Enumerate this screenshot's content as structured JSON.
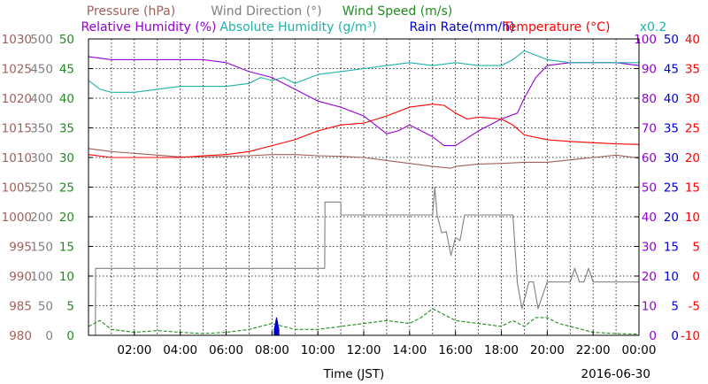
{
  "chart_data": {
    "type": "line",
    "xlabel": "Time (JST)",
    "date": "2016-06-30",
    "grid": true,
    "x_ticks": [
      "02:00",
      "04:00",
      "06:00",
      "08:00",
      "10:00",
      "12:00",
      "14:00",
      "16:00",
      "18:00",
      "20:00",
      "22:00",
      "00:00"
    ],
    "x_range_hours": [
      0,
      24
    ],
    "legend_row1": [
      {
        "text": "Pressure (hPa)",
        "color": "#a0605a"
      },
      {
        "text": "Wind Direction (°)",
        "color": "#808080"
      },
      {
        "text": "Wind Speed (m/s)",
        "color": "#228b22"
      }
    ],
    "legend_row2": [
      {
        "text": "Relative Humidity (%)",
        "color": "#9400d3"
      },
      {
        "text": "Absolute Humidity (g/m³)",
        "color": "#20b2aa"
      },
      {
        "text": "Rain Rate(mm/h)",
        "color": "#0000cd"
      },
      {
        "text": "Temperature (°C)",
        "color": "#ff0000"
      },
      {
        "text": "x0.2",
        "color": "#20b2aa"
      }
    ],
    "axes": {
      "pressure": {
        "ticks": [
          "1030",
          "1025",
          "1020",
          "1015",
          "1010",
          "1005",
          "1000",
          "995",
          "990",
          "985",
          "980"
        ],
        "ylim": [
          980,
          1030
        ],
        "color": "#a0605a"
      },
      "wind_direction": {
        "ticks": [
          "500",
          "450",
          "400",
          "350",
          "300",
          "250",
          "200",
          "150",
          "100",
          "50",
          "0"
        ],
        "ylim": [
          0,
          500
        ],
        "color": "#808080"
      },
      "wind_speed": {
        "ticks": [
          "50",
          "45",
          "40",
          "35",
          "30",
          "25",
          "20",
          "15",
          "10",
          "5",
          "0"
        ],
        "ylim": [
          0,
          50
        ],
        "color": "#228b22"
      },
      "humidity": {
        "ticks": [
          "100",
          "90",
          "80",
          "70",
          "60",
          "50",
          "40",
          "30",
          "20",
          "10",
          "0"
        ],
        "ylim": [
          0,
          100
        ],
        "color": "#9400d3"
      },
      "rain_abs_humidity": {
        "ticks": [
          "50",
          "45",
          "40",
          "35",
          "30",
          "25",
          "20",
          "15",
          "10",
          "5",
          "0"
        ],
        "ylim": [
          0,
          50
        ],
        "color": "#0000cd"
      },
      "temperature": {
        "ticks": [
          "40",
          "35",
          "30",
          "25",
          "20",
          "15",
          "10",
          "5",
          "0",
          "-5",
          "-10"
        ],
        "ylim": [
          -10,
          40
        ],
        "color": "#ff0000"
      }
    },
    "series": [
      {
        "name": "Pressure (hPa)",
        "axis": "pressure",
        "color": "#a0605a",
        "x": [
          0,
          1,
          2,
          3,
          4,
          5,
          6,
          7,
          8,
          9,
          10,
          11,
          12,
          13,
          14,
          15,
          15.8,
          16,
          17,
          18,
          19,
          20,
          21,
          22,
          23,
          24
        ],
        "y": [
          1011.5,
          1011.0,
          1010.7,
          1010.4,
          1010.1,
          1010.1,
          1010.2,
          1010.3,
          1010.5,
          1010.5,
          1010.3,
          1010.2,
          1010.0,
          1009.5,
          1009.0,
          1008.5,
          1008.2,
          1008.5,
          1008.9,
          1009.0,
          1009.2,
          1009.2,
          1009.6,
          1010.0,
          1010.4,
          1009.9
        ]
      },
      {
        "name": "Wind Direction (°)",
        "axis": "wind_direction",
        "color": "#808080",
        "step": true,
        "x": [
          0,
          0.3,
          0.31,
          10.3,
          10.31,
          11.0,
          11.01,
          15.0,
          15.1,
          15.2,
          15.4,
          15.6,
          15.8,
          16.0,
          16.2,
          16.4,
          18.5,
          18.7,
          18.9,
          19.2,
          19.4,
          19.6,
          20.0,
          20.2,
          20.6,
          21.0,
          21.2,
          21.4,
          21.6,
          21.8,
          22.0,
          24
        ],
        "y": [
          0,
          0,
          113,
          113,
          225,
          225,
          203,
          203,
          250,
          203,
          173,
          175,
          135,
          165,
          160,
          203,
          203,
          88,
          45,
          90,
          90,
          45,
          90,
          90,
          90,
          90,
          113,
          90,
          90,
          113,
          90,
          90
        ]
      },
      {
        "name": "Wind Speed (m/s)",
        "axis": "wind_speed",
        "color": "#228b22",
        "dashed": true,
        "x": [
          0,
          0.5,
          1,
          2,
          3,
          4,
          5,
          6,
          7,
          8,
          9,
          10,
          11,
          12,
          13,
          14,
          14.5,
          15,
          15.5,
          16,
          17,
          18,
          18.5,
          19,
          19.5,
          20,
          20.5,
          21,
          22,
          23,
          24
        ],
        "y": [
          1.5,
          2.5,
          1.0,
          0.5,
          0.8,
          0.5,
          0.3,
          0.5,
          1.0,
          2.0,
          1.0,
          1.0,
          1.5,
          2.0,
          2.5,
          2.0,
          3.0,
          4.5,
          3.5,
          2.5,
          2.0,
          1.5,
          2.5,
          1.5,
          3.0,
          3.0,
          2.0,
          1.5,
          0.5,
          0.3,
          0.2
        ]
      },
      {
        "name": "Rain Rate(mm/h)",
        "axis": "rain_abs_humidity",
        "color": "#0000cd",
        "bars": true,
        "x": [
          8.1,
          8.2,
          8.3
        ],
        "y": [
          1.0,
          3.0,
          1.0
        ]
      },
      {
        "name": "Relative Humidity (%)",
        "axis": "humidity",
        "color": "#9400d3",
        "x": [
          0,
          1,
          2,
          3,
          4,
          5,
          6,
          7,
          8,
          8.5,
          9,
          10,
          11,
          12,
          13,
          13.5,
          14,
          15,
          15.5,
          16,
          17,
          18,
          18.7,
          19,
          19.5,
          20,
          21,
          22,
          23,
          24
        ],
        "y": [
          94,
          93,
          93,
          93,
          93,
          93,
          92,
          89,
          87,
          85,
          83,
          79,
          77,
          74,
          68,
          69,
          71,
          67,
          64,
          64,
          69,
          73,
          75,
          80,
          87,
          91,
          92,
          92,
          92,
          91
        ]
      },
      {
        "name": "Absolute Humidity (g/m³)",
        "axis": "humidity",
        "color": "#20b2aa",
        "x": [
          0,
          0.5,
          1,
          2,
          3,
          4,
          5,
          6,
          7,
          7.5,
          8,
          8.5,
          9,
          10,
          11,
          12,
          13,
          14,
          15,
          16,
          17,
          18,
          18.5,
          19,
          20,
          21,
          22,
          23,
          24
        ],
        "y": [
          86,
          83,
          82,
          82,
          83,
          84,
          84,
          84,
          85,
          87,
          86,
          87,
          85,
          88,
          89,
          90,
          91,
          92,
          91,
          92,
          91,
          91,
          93,
          96,
          93,
          92,
          92,
          92,
          92
        ]
      },
      {
        "name": "Temperature (°C)",
        "axis": "temperature",
        "color": "#ff0000",
        "x": [
          0,
          1,
          2,
          3,
          4,
          5,
          6,
          7,
          8,
          9,
          10,
          11,
          12,
          13,
          14,
          15,
          15.5,
          16,
          16.5,
          17,
          18,
          18.5,
          19,
          20,
          21,
          22,
          23,
          24
        ],
        "y": [
          20.5,
          20.0,
          20.0,
          20.0,
          20.0,
          20.3,
          20.5,
          21.0,
          22.0,
          23.0,
          24.5,
          25.5,
          25.8,
          27.0,
          28.5,
          29.0,
          28.8,
          27.5,
          26.5,
          26.8,
          26.5,
          25.5,
          23.8,
          23.0,
          22.7,
          22.5,
          22.3,
          22.2
        ]
      }
    ]
  }
}
